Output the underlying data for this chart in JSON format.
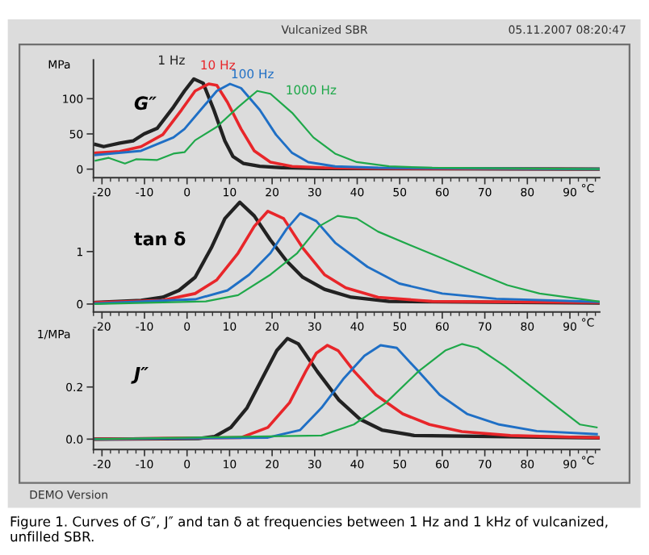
{
  "chart_data": [
    {
      "type": "line",
      "title": "Vulcanized SBR",
      "xlabel": "°C",
      "ylabel": "MPa",
      "annotations": [
        "G″",
        "05.11.2007 08:20:47"
      ],
      "xlim": [
        -22,
        97
      ],
      "ylim": [
        -12,
        155
      ],
      "xticks": [
        -20,
        -10,
        0,
        10,
        20,
        30,
        40,
        50,
        60,
        70,
        80,
        90
      ],
      "yticks": [
        0,
        50,
        100
      ],
      "grid": false,
      "legend": false,
      "marker": "none",
      "line_style": "solid",
      "series": [
        {
          "name": "1 Hz",
          "color": "#222222",
          "x": [
            -21.5,
            -19.6,
            -15.8,
            -12.7,
            -10.1,
            -7,
            -3.2,
            -0.6,
            1.6,
            3.8,
            6.3,
            8.9,
            10.8,
            13.3,
            17.1,
            22.2,
            32.3,
            96.8
          ],
          "values": [
            35,
            32,
            37,
            40,
            50,
            58,
            88,
            111,
            128,
            122,
            84,
            40,
            18,
            8,
            4,
            2,
            1,
            0
          ]
        },
        {
          "name": "10 Hz",
          "color": "#e8262a",
          "x": [
            -21.5,
            -15.8,
            -10.8,
            -5.7,
            -1.3,
            1.9,
            5.1,
            7,
            9.5,
            12.7,
            15.8,
            19.6,
            24.7,
            32.3,
            45,
            96.8
          ],
          "values": [
            23,
            25,
            32,
            49,
            84,
            111,
            121,
            119,
            95,
            57,
            26,
            10,
            4,
            2,
            1,
            0
          ]
        },
        {
          "name": "100 Hz",
          "color": "#1f6fc5",
          "x": [
            -21.5,
            -10.8,
            -3.2,
            -0.6,
            3.2,
            7,
            10.1,
            12.7,
            17.1,
            20.9,
            24.7,
            28.5,
            34.8,
            44.9,
            96.8
          ],
          "values": [
            20,
            26,
            45,
            57,
            84,
            111,
            121,
            115,
            84,
            49,
            23,
            10,
            4,
            2,
            0
          ]
        },
        {
          "name": "1000 Hz",
          "color": "#1fa84a",
          "x": [
            -21.5,
            -18.4,
            -14.6,
            -12,
            -7,
            -3.2,
            -0.6,
            1.9,
            7,
            12,
            16.5,
            19.6,
            24.7,
            29.7,
            34.8,
            39.9,
            47.5,
            57.6,
            96.8
          ],
          "values": [
            12,
            16,
            8,
            14,
            13,
            22,
            24,
            41,
            60,
            88,
            111,
            107,
            80,
            45,
            22,
            10,
            4,
            2,
            0
          ]
        }
      ]
    },
    {
      "type": "line",
      "xlabel": "°C",
      "annotations": [
        "tan δ"
      ],
      "xlim": [
        -22,
        97
      ],
      "ylim": [
        -0.15,
        2.05
      ],
      "xticks": [
        -20,
        -10,
        0,
        10,
        20,
        30,
        40,
        50,
        60,
        70,
        80,
        90
      ],
      "yticks": [
        0,
        1
      ],
      "grid": false,
      "legend": false,
      "marker": "none",
      "line_style": "solid",
      "series": [
        {
          "color": "#222222",
          "x": [
            -21.5,
            -10.8,
            -5.7,
            -1.9,
            1.9,
            5.7,
            8.9,
            12.4,
            15.8,
            19.6,
            23.4,
            27.2,
            32.3,
            38.6,
            47.5,
            96.8
          ],
          "values": [
            0.03,
            0.07,
            0.13,
            0.26,
            0.51,
            1.07,
            1.63,
            1.94,
            1.68,
            1.22,
            0.82,
            0.51,
            0.28,
            0.13,
            0.05,
            0.02
          ]
        },
        {
          "color": "#e8262a",
          "x": [
            -21.5,
            -5.7,
            1.9,
            7,
            12,
            15.8,
            19,
            22.7,
            27.2,
            32.3,
            37.3,
            44.9,
            57.6,
            96.8
          ],
          "values": [
            0.03,
            0.07,
            0.2,
            0.46,
            0.97,
            1.48,
            1.77,
            1.63,
            1.07,
            0.56,
            0.31,
            0.13,
            0.05,
            0.03
          ]
        },
        {
          "color": "#1f6fc5",
          "x": [
            -21.5,
            1.9,
            9.5,
            14.6,
            19.6,
            23.4,
            26.6,
            30.4,
            34.8,
            42.4,
            49.9,
            60,
            72.7,
            96.8
          ],
          "values": [
            0.01,
            0.09,
            0.26,
            0.56,
            0.97,
            1.43,
            1.73,
            1.58,
            1.17,
            0.71,
            0.39,
            0.2,
            0.1,
            0.04
          ]
        },
        {
          "color": "#1fa84a",
          "x": [
            -21.5,
            4.4,
            12,
            19.6,
            25.9,
            31,
            35.4,
            39.9,
            44.9,
            52.5,
            60,
            67.7,
            75.3,
            82.9,
            96.8
          ],
          "values": [
            0,
            0.05,
            0.17,
            0.56,
            0.97,
            1.48,
            1.68,
            1.63,
            1.38,
            1.12,
            0.87,
            0.61,
            0.36,
            0.2,
            0.05
          ]
        }
      ]
    },
    {
      "type": "line",
      "xlabel": "°C",
      "ylabel": "1/MPa",
      "annotations": [
        "J″",
        "DEMO Version",
        "Figure 1. Curves of G″, J″ and tan δ at frequencies between 1 Hz and 1 kHz of vulcanized, unfilled SBR."
      ],
      "xlim": [
        -22,
        97
      ],
      "ylim": [
        -0.04,
        0.42
      ],
      "xticks": [
        -20,
        -10,
        0,
        10,
        20,
        30,
        40,
        50,
        60,
        70,
        80,
        90
      ],
      "yticks": [
        {
          "value": 0,
          "label": "0.0"
        },
        0.2
      ],
      "grid": false,
      "legend": false,
      "marker": "none",
      "line_style": "solid",
      "series": [
        {
          "color": "#222222",
          "x": [
            -21.5,
            2.7,
            6.5,
            10.3,
            14.1,
            17.9,
            21.1,
            23.6,
            26.2,
            30.6,
            35.7,
            40.7,
            45.8,
            53.4,
            96.8
          ],
          "values": [
            0,
            0.002,
            0.01,
            0.045,
            0.12,
            0.24,
            0.34,
            0.386,
            0.365,
            0.26,
            0.15,
            0.076,
            0.035,
            0.014,
            0.005
          ]
        },
        {
          "color": "#e8262a",
          "x": [
            -21.5,
            12.7,
            19,
            24.1,
            27.9,
            30.4,
            33,
            35.5,
            39.3,
            44.4,
            50.7,
            57,
            64.6,
            76,
            96.8
          ],
          "values": [
            0,
            0.006,
            0.045,
            0.14,
            0.26,
            0.33,
            0.36,
            0.34,
            0.26,
            0.17,
            0.097,
            0.056,
            0.029,
            0.014,
            0.005
          ]
        },
        {
          "color": "#1f6fc5",
          "x": [
            -21.5,
            19,
            26.6,
            31.6,
            36.7,
            41.7,
            45.5,
            49.3,
            54.4,
            59.4,
            65.8,
            73.4,
            82.2,
            96.3
          ],
          "values": [
            0,
            0.006,
            0.035,
            0.12,
            0.23,
            0.32,
            0.36,
            0.35,
            0.26,
            0.17,
            0.097,
            0.056,
            0.031,
            0.019
          ]
        },
        {
          "color": "#1fa84a",
          "x": [
            -21.5,
            31.6,
            39.2,
            46.8,
            54.4,
            60.7,
            64.6,
            68.3,
            74.7,
            81,
            87.3,
            92.4,
            96.3
          ],
          "values": [
            0,
            0.014,
            0.056,
            0.14,
            0.26,
            0.34,
            0.365,
            0.35,
            0.28,
            0.2,
            0.12,
            0.056,
            0.045
          ]
        }
      ]
    }
  ]
}
